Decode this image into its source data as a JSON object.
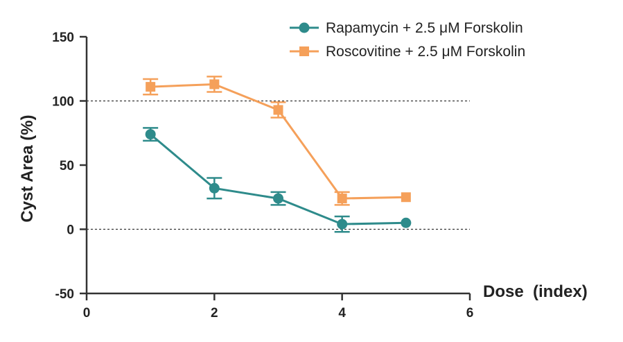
{
  "chart_data": {
    "type": "line",
    "title": "",
    "xlabel": "Dose  (index)",
    "ylabel": "Cyst Area (%)",
    "xlim": [
      0,
      6
    ],
    "ylim": [
      -50,
      150
    ],
    "x_ticks": [
      "0",
      "2",
      "4",
      "6"
    ],
    "y_ticks": [
      "150",
      "100",
      "50",
      "0",
      "-50"
    ],
    "reference_lines": [
      100,
      0
    ],
    "legend_position": "top-right",
    "series": [
      {
        "name": "Rapamycin + 2.5 μM Forskolin",
        "color": "#2e8b8b",
        "marker": "circle",
        "x": [
          1,
          2,
          3,
          4,
          5
        ],
        "y": [
          74,
          32,
          24,
          4,
          5
        ],
        "error": [
          5,
          8,
          5,
          6,
          0
        ]
      },
      {
        "name": "Roscovitine + 2.5 μM Forskolin",
        "color": "#f5a05a",
        "marker": "square",
        "x": [
          1,
          2,
          3,
          4,
          5
        ],
        "y": [
          111,
          113,
          93,
          24,
          25
        ],
        "y_note": "",
        "error": [
          6,
          6,
          6,
          5,
          0
        ]
      }
    ]
  }
}
